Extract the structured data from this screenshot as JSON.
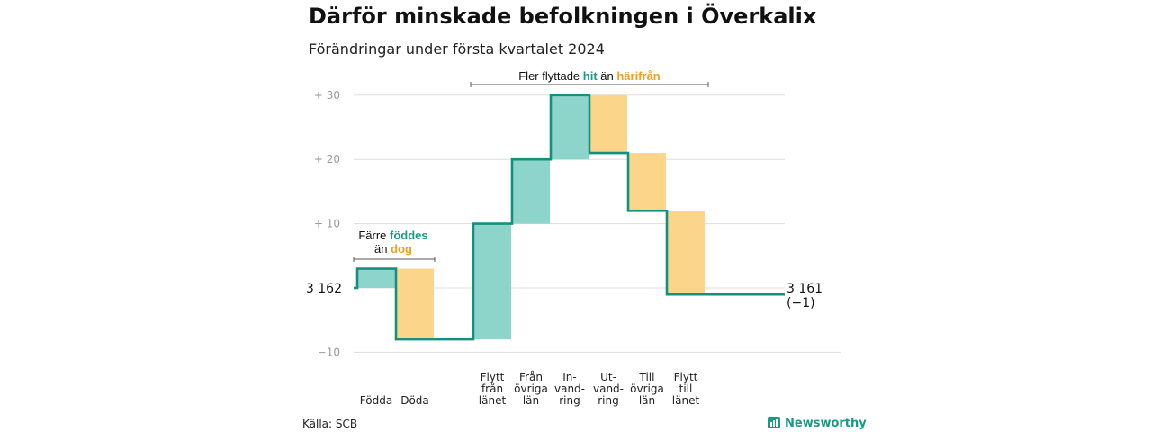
{
  "title": "Därför minskade befolkningen i Överkalix",
  "subtitle": "Förändringar under första kvartalet 2024",
  "source": "Källa: SCB",
  "brand": "Newsworthy",
  "colors": {
    "increase": "#8dd5cb",
    "decrease": "#fad58a",
    "line": "#16907e",
    "teal_text": "#1a9a86",
    "orange_text": "#f0a020",
    "grid": "#dddddd"
  },
  "chart_data": {
    "type": "waterfall",
    "start_value": 3162,
    "start_label": "3 162",
    "end_value": 3161,
    "end_label": "3 161",
    "end_change_label": "(−1)",
    "ylim": [
      -10,
      30
    ],
    "yticks": [
      {
        "value": 30,
        "label": "+ 30"
      },
      {
        "value": 20,
        "label": "+ 20"
      },
      {
        "value": 10,
        "label": "+ 10"
      },
      {
        "value": -10,
        "label": "−10"
      }
    ],
    "steps": [
      {
        "label": [
          "Födda"
        ],
        "change": 3,
        "kind": "increase"
      },
      {
        "label": [
          "Döda"
        ],
        "change": -11,
        "kind": "decrease"
      },
      {
        "label": [
          "Flytt",
          "från",
          "länet"
        ],
        "change": 18,
        "kind": "increase"
      },
      {
        "label": [
          "Från",
          "övriga",
          "län"
        ],
        "change": 10,
        "kind": "increase"
      },
      {
        "label": [
          "In-",
          "vand-",
          "ring"
        ],
        "change": 10,
        "kind": "increase"
      },
      {
        "label": [
          "Ut-",
          "vand-",
          "ring"
        ],
        "change": -9,
        "kind": "decrease"
      },
      {
        "label": [
          "Till",
          "övriga",
          "län"
        ],
        "change": -9,
        "kind": "decrease"
      },
      {
        "label": [
          "Flytt",
          "till",
          "länet"
        ],
        "change": -13,
        "kind": "decrease"
      }
    ],
    "annotations": [
      {
        "lines": [
          [
            {
              "t": "Färre ",
              "c": "normal"
            },
            {
              "t": "föddes",
              "c": "teal"
            }
          ],
          [
            {
              "t": "än ",
              "c": "normal"
            },
            {
              "t": "dog",
              "c": "orange"
            }
          ]
        ]
      },
      {
        "lines": [
          [
            {
              "t": "Fler flyttade ",
              "c": "normal"
            },
            {
              "t": "hit",
              "c": "teal"
            },
            {
              "t": " än ",
              "c": "normal"
            },
            {
              "t": "härifrån",
              "c": "orange"
            }
          ]
        ]
      }
    ]
  }
}
